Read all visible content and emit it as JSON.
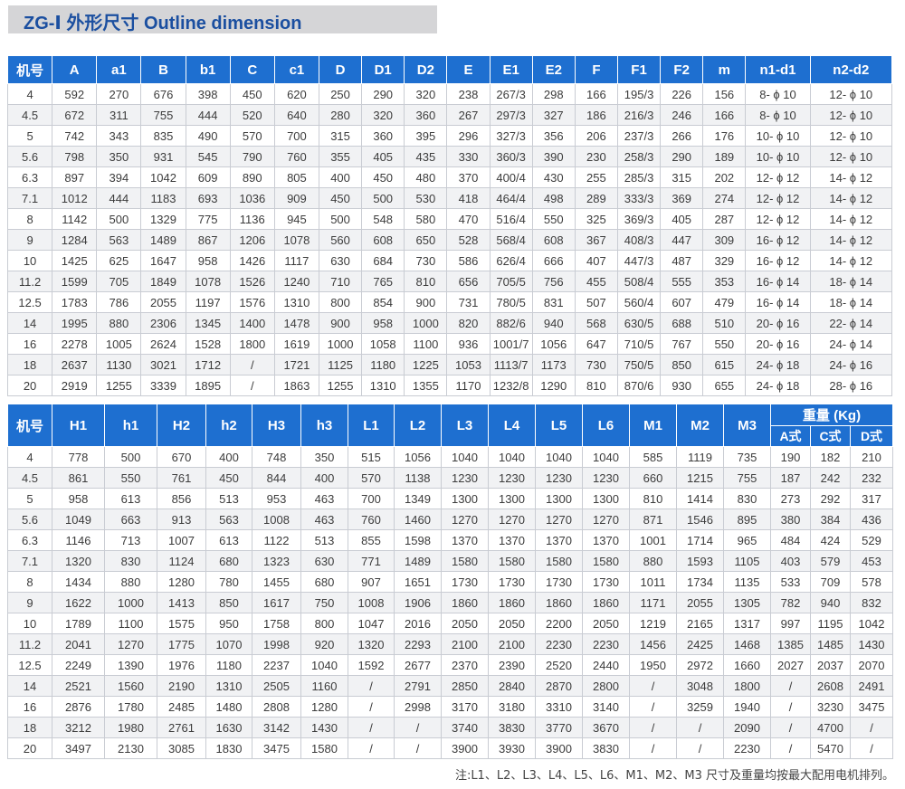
{
  "title": "ZG-Ⅰ  外形尺寸  Outline dimension",
  "table1": {
    "headers": [
      "机号",
      "A",
      "a1",
      "B",
      "b1",
      "C",
      "c1",
      "D",
      "D1",
      "D2",
      "E",
      "E1",
      "E2",
      "F",
      "F1",
      "F2",
      "m",
      "n1-d1",
      "n2-d2"
    ],
    "rows": [
      [
        "4",
        "592",
        "270",
        "676",
        "398",
        "450",
        "620",
        "250",
        "290",
        "320",
        "238",
        "267/3",
        "298",
        "166",
        "195/3",
        "226",
        "156",
        "8- ϕ 10",
        "12- ϕ 10"
      ],
      [
        "4.5",
        "672",
        "311",
        "755",
        "444",
        "520",
        "640",
        "280",
        "320",
        "360",
        "267",
        "297/3",
        "327",
        "186",
        "216/3",
        "246",
        "166",
        "8- ϕ 10",
        "12- ϕ 10"
      ],
      [
        "5",
        "742",
        "343",
        "835",
        "490",
        "570",
        "700",
        "315",
        "360",
        "395",
        "296",
        "327/3",
        "356",
        "206",
        "237/3",
        "266",
        "176",
        "10- ϕ 10",
        "12- ϕ 10"
      ],
      [
        "5.6",
        "798",
        "350",
        "931",
        "545",
        "790",
        "760",
        "355",
        "405",
        "435",
        "330",
        "360/3",
        "390",
        "230",
        "258/3",
        "290",
        "189",
        "10- ϕ 10",
        "12- ϕ 10"
      ],
      [
        "6.3",
        "897",
        "394",
        "1042",
        "609",
        "890",
        "805",
        "400",
        "450",
        "480",
        "370",
        "400/4",
        "430",
        "255",
        "285/3",
        "315",
        "202",
        "12- ϕ 12",
        "14- ϕ 12"
      ],
      [
        "7.1",
        "1012",
        "444",
        "1183",
        "693",
        "1036",
        "909",
        "450",
        "500",
        "530",
        "418",
        "464/4",
        "498",
        "289",
        "333/3",
        "369",
        "274",
        "12- ϕ 12",
        "14- ϕ 12"
      ],
      [
        "8",
        "1142",
        "500",
        "1329",
        "775",
        "1136",
        "945",
        "500",
        "548",
        "580",
        "470",
        "516/4",
        "550",
        "325",
        "369/3",
        "405",
        "287",
        "12- ϕ 12",
        "14- ϕ 12"
      ],
      [
        "9",
        "1284",
        "563",
        "1489",
        "867",
        "1206",
        "1078",
        "560",
        "608",
        "650",
        "528",
        "568/4",
        "608",
        "367",
        "408/3",
        "447",
        "309",
        "16- ϕ 12",
        "14- ϕ 12"
      ],
      [
        "10",
        "1425",
        "625",
        "1647",
        "958",
        "1426",
        "1117",
        "630",
        "684",
        "730",
        "586",
        "626/4",
        "666",
        "407",
        "447/3",
        "487",
        "329",
        "16- ϕ 12",
        "14- ϕ 12"
      ],
      [
        "11.2",
        "1599",
        "705",
        "1849",
        "1078",
        "1526",
        "1240",
        "710",
        "765",
        "810",
        "656",
        "705/5",
        "756",
        "455",
        "508/4",
        "555",
        "353",
        "16- ϕ 14",
        "18- ϕ 14"
      ],
      [
        "12.5",
        "1783",
        "786",
        "2055",
        "1197",
        "1576",
        "1310",
        "800",
        "854",
        "900",
        "731",
        "780/5",
        "831",
        "507",
        "560/4",
        "607",
        "479",
        "16- ϕ 14",
        "18- ϕ 14"
      ],
      [
        "14",
        "1995",
        "880",
        "2306",
        "1345",
        "1400",
        "1478",
        "900",
        "958",
        "1000",
        "820",
        "882/6",
        "940",
        "568",
        "630/5",
        "688",
        "510",
        "20- ϕ 16",
        "22- ϕ 14"
      ],
      [
        "16",
        "2278",
        "1005",
        "2624",
        "1528",
        "1800",
        "1619",
        "1000",
        "1058",
        "1100",
        "936",
        "1001/7",
        "1056",
        "647",
        "710/5",
        "767",
        "550",
        "20- ϕ 16",
        "24- ϕ 14"
      ],
      [
        "18",
        "2637",
        "1130",
        "3021",
        "1712",
        "/",
        "1721",
        "1125",
        "1180",
        "1225",
        "1053",
        "1113/7",
        "1173",
        "730",
        "750/5",
        "850",
        "615",
        "24- ϕ 18",
        "24- ϕ 16"
      ],
      [
        "20",
        "2919",
        "1255",
        "3339",
        "1895",
        "/",
        "1863",
        "1255",
        "1310",
        "1355",
        "1170",
        "1232/8",
        "1290",
        "810",
        "870/6",
        "930",
        "655",
        "24- ϕ 18",
        "28- ϕ 16"
      ]
    ]
  },
  "table2": {
    "headers": [
      "机号",
      "H1",
      "h1",
      "H2",
      "h2",
      "H3",
      "h3",
      "L1",
      "L2",
      "L3",
      "L4",
      "L5",
      "L6",
      "M1",
      "M2",
      "M3"
    ],
    "weight_header": "重量 (Kg)",
    "weight_subheaders": [
      "A式",
      "C式",
      "D式"
    ],
    "rows": [
      [
        "4",
        "778",
        "500",
        "670",
        "400",
        "748",
        "350",
        "515",
        "1056",
        "1040",
        "1040",
        "1040",
        "1040",
        "585",
        "1119",
        "735",
        "190",
        "182",
        "210"
      ],
      [
        "4.5",
        "861",
        "550",
        "761",
        "450",
        "844",
        "400",
        "570",
        "1138",
        "1230",
        "1230",
        "1230",
        "1230",
        "660",
        "1215",
        "755",
        "187",
        "242",
        "232"
      ],
      [
        "5",
        "958",
        "613",
        "856",
        "513",
        "953",
        "463",
        "700",
        "1349",
        "1300",
        "1300",
        "1300",
        "1300",
        "810",
        "1414",
        "830",
        "273",
        "292",
        "317"
      ],
      [
        "5.6",
        "1049",
        "663",
        "913",
        "563",
        "1008",
        "463",
        "760",
        "1460",
        "1270",
        "1270",
        "1270",
        "1270",
        "871",
        "1546",
        "895",
        "380",
        "384",
        "436"
      ],
      [
        "6.3",
        "1146",
        "713",
        "1007",
        "613",
        "1122",
        "513",
        "855",
        "1598",
        "1370",
        "1370",
        "1370",
        "1370",
        "1001",
        "1714",
        "965",
        "484",
        "424",
        "529"
      ],
      [
        "7.1",
        "1320",
        "830",
        "1124",
        "680",
        "1323",
        "630",
        "771",
        "1489",
        "1580",
        "1580",
        "1580",
        "1580",
        "880",
        "1593",
        "1105",
        "403",
        "579",
        "453"
      ],
      [
        "8",
        "1434",
        "880",
        "1280",
        "780",
        "1455",
        "680",
        "907",
        "1651",
        "1730",
        "1730",
        "1730",
        "1730",
        "1011",
        "1734",
        "1135",
        "533",
        "709",
        "578"
      ],
      [
        "9",
        "1622",
        "1000",
        "1413",
        "850",
        "1617",
        "750",
        "1008",
        "1906",
        "1860",
        "1860",
        "1860",
        "1860",
        "1171",
        "2055",
        "1305",
        "782",
        "940",
        "832"
      ],
      [
        "10",
        "1789",
        "1100",
        "1575",
        "950",
        "1758",
        "800",
        "1047",
        "2016",
        "2050",
        "2050",
        "2200",
        "2050",
        "1219",
        "2165",
        "1317",
        "997",
        "1195",
        "1042"
      ],
      [
        "11.2",
        "2041",
        "1270",
        "1775",
        "1070",
        "1998",
        "920",
        "1320",
        "2293",
        "2100",
        "2100",
        "2230",
        "2230",
        "1456",
        "2425",
        "1468",
        "1385",
        "1485",
        "1430"
      ],
      [
        "12.5",
        "2249",
        "1390",
        "1976",
        "1180",
        "2237",
        "1040",
        "1592",
        "2677",
        "2370",
        "2390",
        "2520",
        "2440",
        "1950",
        "2972",
        "1660",
        "2027",
        "2037",
        "2070"
      ],
      [
        "14",
        "2521",
        "1560",
        "2190",
        "1310",
        "2505",
        "1160",
        "/",
        "2791",
        "2850",
        "2840",
        "2870",
        "2800",
        "/",
        "3048",
        "1800",
        "/",
        "2608",
        "2491"
      ],
      [
        "16",
        "2876",
        "1780",
        "2485",
        "1480",
        "2808",
        "1280",
        "/",
        "2998",
        "3170",
        "3180",
        "3310",
        "3140",
        "/",
        "3259",
        "1940",
        "/",
        "3230",
        "3475"
      ],
      [
        "18",
        "3212",
        "1980",
        "2761",
        "1630",
        "3142",
        "1430",
        "/",
        "/",
        "3740",
        "3830",
        "3770",
        "3670",
        "/",
        "/",
        "2090",
        "/",
        "4700",
        "/"
      ],
      [
        "20",
        "3497",
        "2130",
        "3085",
        "1830",
        "3475",
        "1580",
        "/",
        "/",
        "3900",
        "3930",
        "3900",
        "3830",
        "/",
        "/",
        "2230",
        "/",
        "5470",
        "/"
      ]
    ]
  },
  "note": "注:L1、L2、L3、L4、L5、L6、M1、M2、M3 尺寸及重量均按最大配用电机排列。"
}
